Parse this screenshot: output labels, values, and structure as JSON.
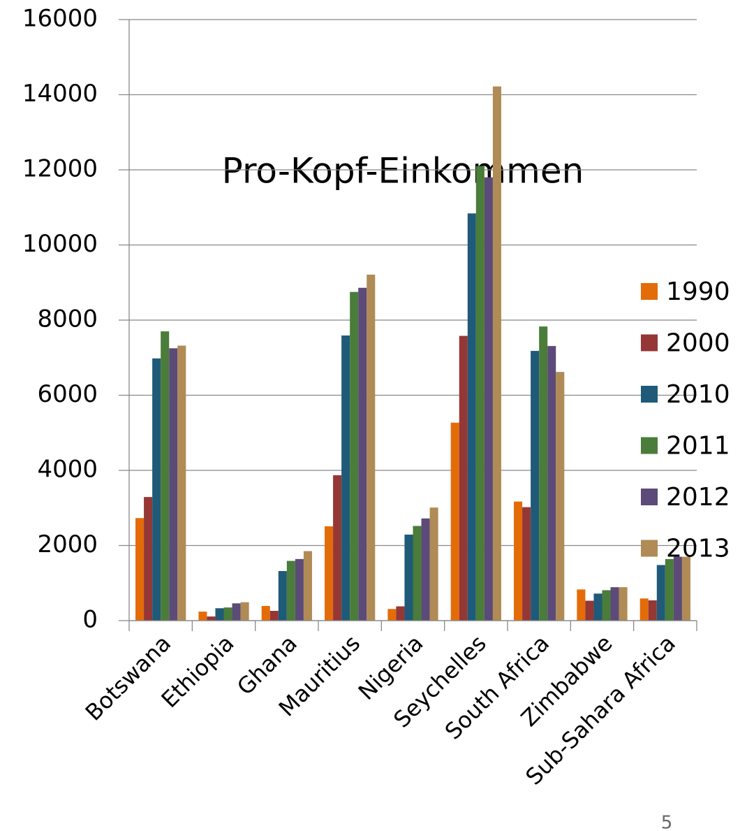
{
  "chart_data": {
    "type": "bar",
    "title": "Pro-Kopf-Einkommen",
    "categories": [
      "Botswana",
      "Ethiopia",
      "Ghana",
      "Mauritius",
      "Nigeria",
      "Seychelles",
      "South Africa",
      "Zimbabwe",
      "Sub-Sahara Africa"
    ],
    "series": [
      {
        "name": "1990",
        "color": "#e36c09",
        "values": [
          2730,
          240,
          390,
          2510,
          310,
          5270,
          3170,
          830,
          590
        ]
      },
      {
        "name": "2000",
        "color": "#953735",
        "values": [
          3290,
          110,
          260,
          3870,
          380,
          7580,
          3020,
          530,
          540
        ]
      },
      {
        "name": "2010",
        "color": "#1f5a78",
        "values": [
          6980,
          330,
          1320,
          7590,
          2290,
          10840,
          7180,
          720,
          1480
        ]
      },
      {
        "name": "2011",
        "color": "#4a7c3a",
        "values": [
          7700,
          350,
          1590,
          8750,
          2520,
          12100,
          7830,
          810,
          1640
        ]
      },
      {
        "name": "2012",
        "color": "#5c4a78",
        "values": [
          7250,
          460,
          1640,
          8860,
          2720,
          11800,
          7310,
          890,
          1700
        ]
      },
      {
        "name": "2013",
        "color": "#b08b56",
        "values": [
          7320,
          490,
          1850,
          9210,
          3010,
          14220,
          6620,
          890,
          1700
        ]
      }
    ],
    "ylim": [
      0,
      16000
    ],
    "yticks": [
      0,
      2000,
      4000,
      6000,
      8000,
      10000,
      12000,
      14000,
      16000
    ],
    "grid": true,
    "legend": "right",
    "slide_number": "5"
  }
}
